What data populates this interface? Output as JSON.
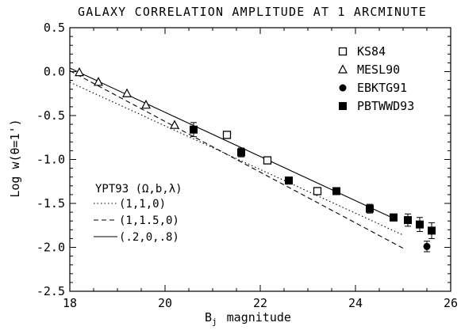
{
  "chart_data": {
    "type": "scatter",
    "title": "GALAXY CORRELATION AMPLITUDE AT 1 ARCMINUTE",
    "xlabel_sym": "B",
    "xlabel_sub": "j",
    "xlabel_rest": "magnitude",
    "ylabel": "Log w(θ=1')",
    "xlim": [
      18,
      26
    ],
    "ylim": [
      -2.5,
      0.5
    ],
    "xticks": [
      18,
      20,
      22,
      24,
      26
    ],
    "yticks": [
      0.5,
      0.0,
      -0.5,
      -1.0,
      -1.5,
      -2.0,
      -2.5
    ],
    "ytick_labels": [
      "0.5",
      "0.0",
      "-0.5",
      "-1.0",
      "-1.5",
      "-2.0",
      "-2.5"
    ],
    "legend_position": "top-right",
    "series": [
      {
        "name": "KS84",
        "marker": "open-square",
        "points": [
          {
            "x": 21.3,
            "y": -0.72
          },
          {
            "x": 22.15,
            "y": -1.01
          },
          {
            "x": 23.2,
            "y": -1.36
          }
        ]
      },
      {
        "name": "MESL90",
        "marker": "open-triangle",
        "points": [
          {
            "x": 18.2,
            "y": -0.01
          },
          {
            "x": 18.6,
            "y": -0.12
          },
          {
            "x": 19.2,
            "y": -0.25
          },
          {
            "x": 19.6,
            "y": -0.38
          },
          {
            "x": 20.2,
            "y": -0.61
          }
        ]
      },
      {
        "name": "EBKTG91",
        "marker": "filled-circle",
        "points": [
          {
            "x": 25.5,
            "y": -1.99,
            "err": 0.06
          }
        ]
      },
      {
        "name": "PBTWWD93",
        "marker": "filled-square",
        "points": [
          {
            "x": 20.6,
            "y": -0.66,
            "err": 0.08
          },
          {
            "x": 21.6,
            "y": -0.92,
            "err": 0.05
          },
          {
            "x": 22.6,
            "y": -1.24,
            "err": 0.04
          },
          {
            "x": 23.6,
            "y": -1.36,
            "err": 0.03
          },
          {
            "x": 24.3,
            "y": -1.56,
            "err": 0.05
          },
          {
            "x": 24.8,
            "y": -1.66,
            "err": 0.04
          },
          {
            "x": 25.1,
            "y": -1.69,
            "err": 0.07
          },
          {
            "x": 25.35,
            "y": -1.74,
            "err": 0.08
          },
          {
            "x": 25.6,
            "y": -1.81,
            "err": 0.09
          }
        ]
      }
    ],
    "models": {
      "header": "YPT93 (Ω,b,λ)",
      "lines": [
        {
          "name": "(1,1,0)",
          "style": "dotted",
          "x": [
            18,
            25
          ],
          "y": [
            -0.12,
            -1.86
          ]
        },
        {
          "name": "(1,1.5,0)",
          "style": "dashed",
          "x": [
            18,
            25
          ],
          "y": [
            0.01,
            -2.01
          ]
        },
        {
          "name": "(.2,0,.8)",
          "style": "solid",
          "x": [
            18,
            24.8
          ],
          "y": [
            0.04,
            -1.67
          ]
        }
      ]
    }
  }
}
